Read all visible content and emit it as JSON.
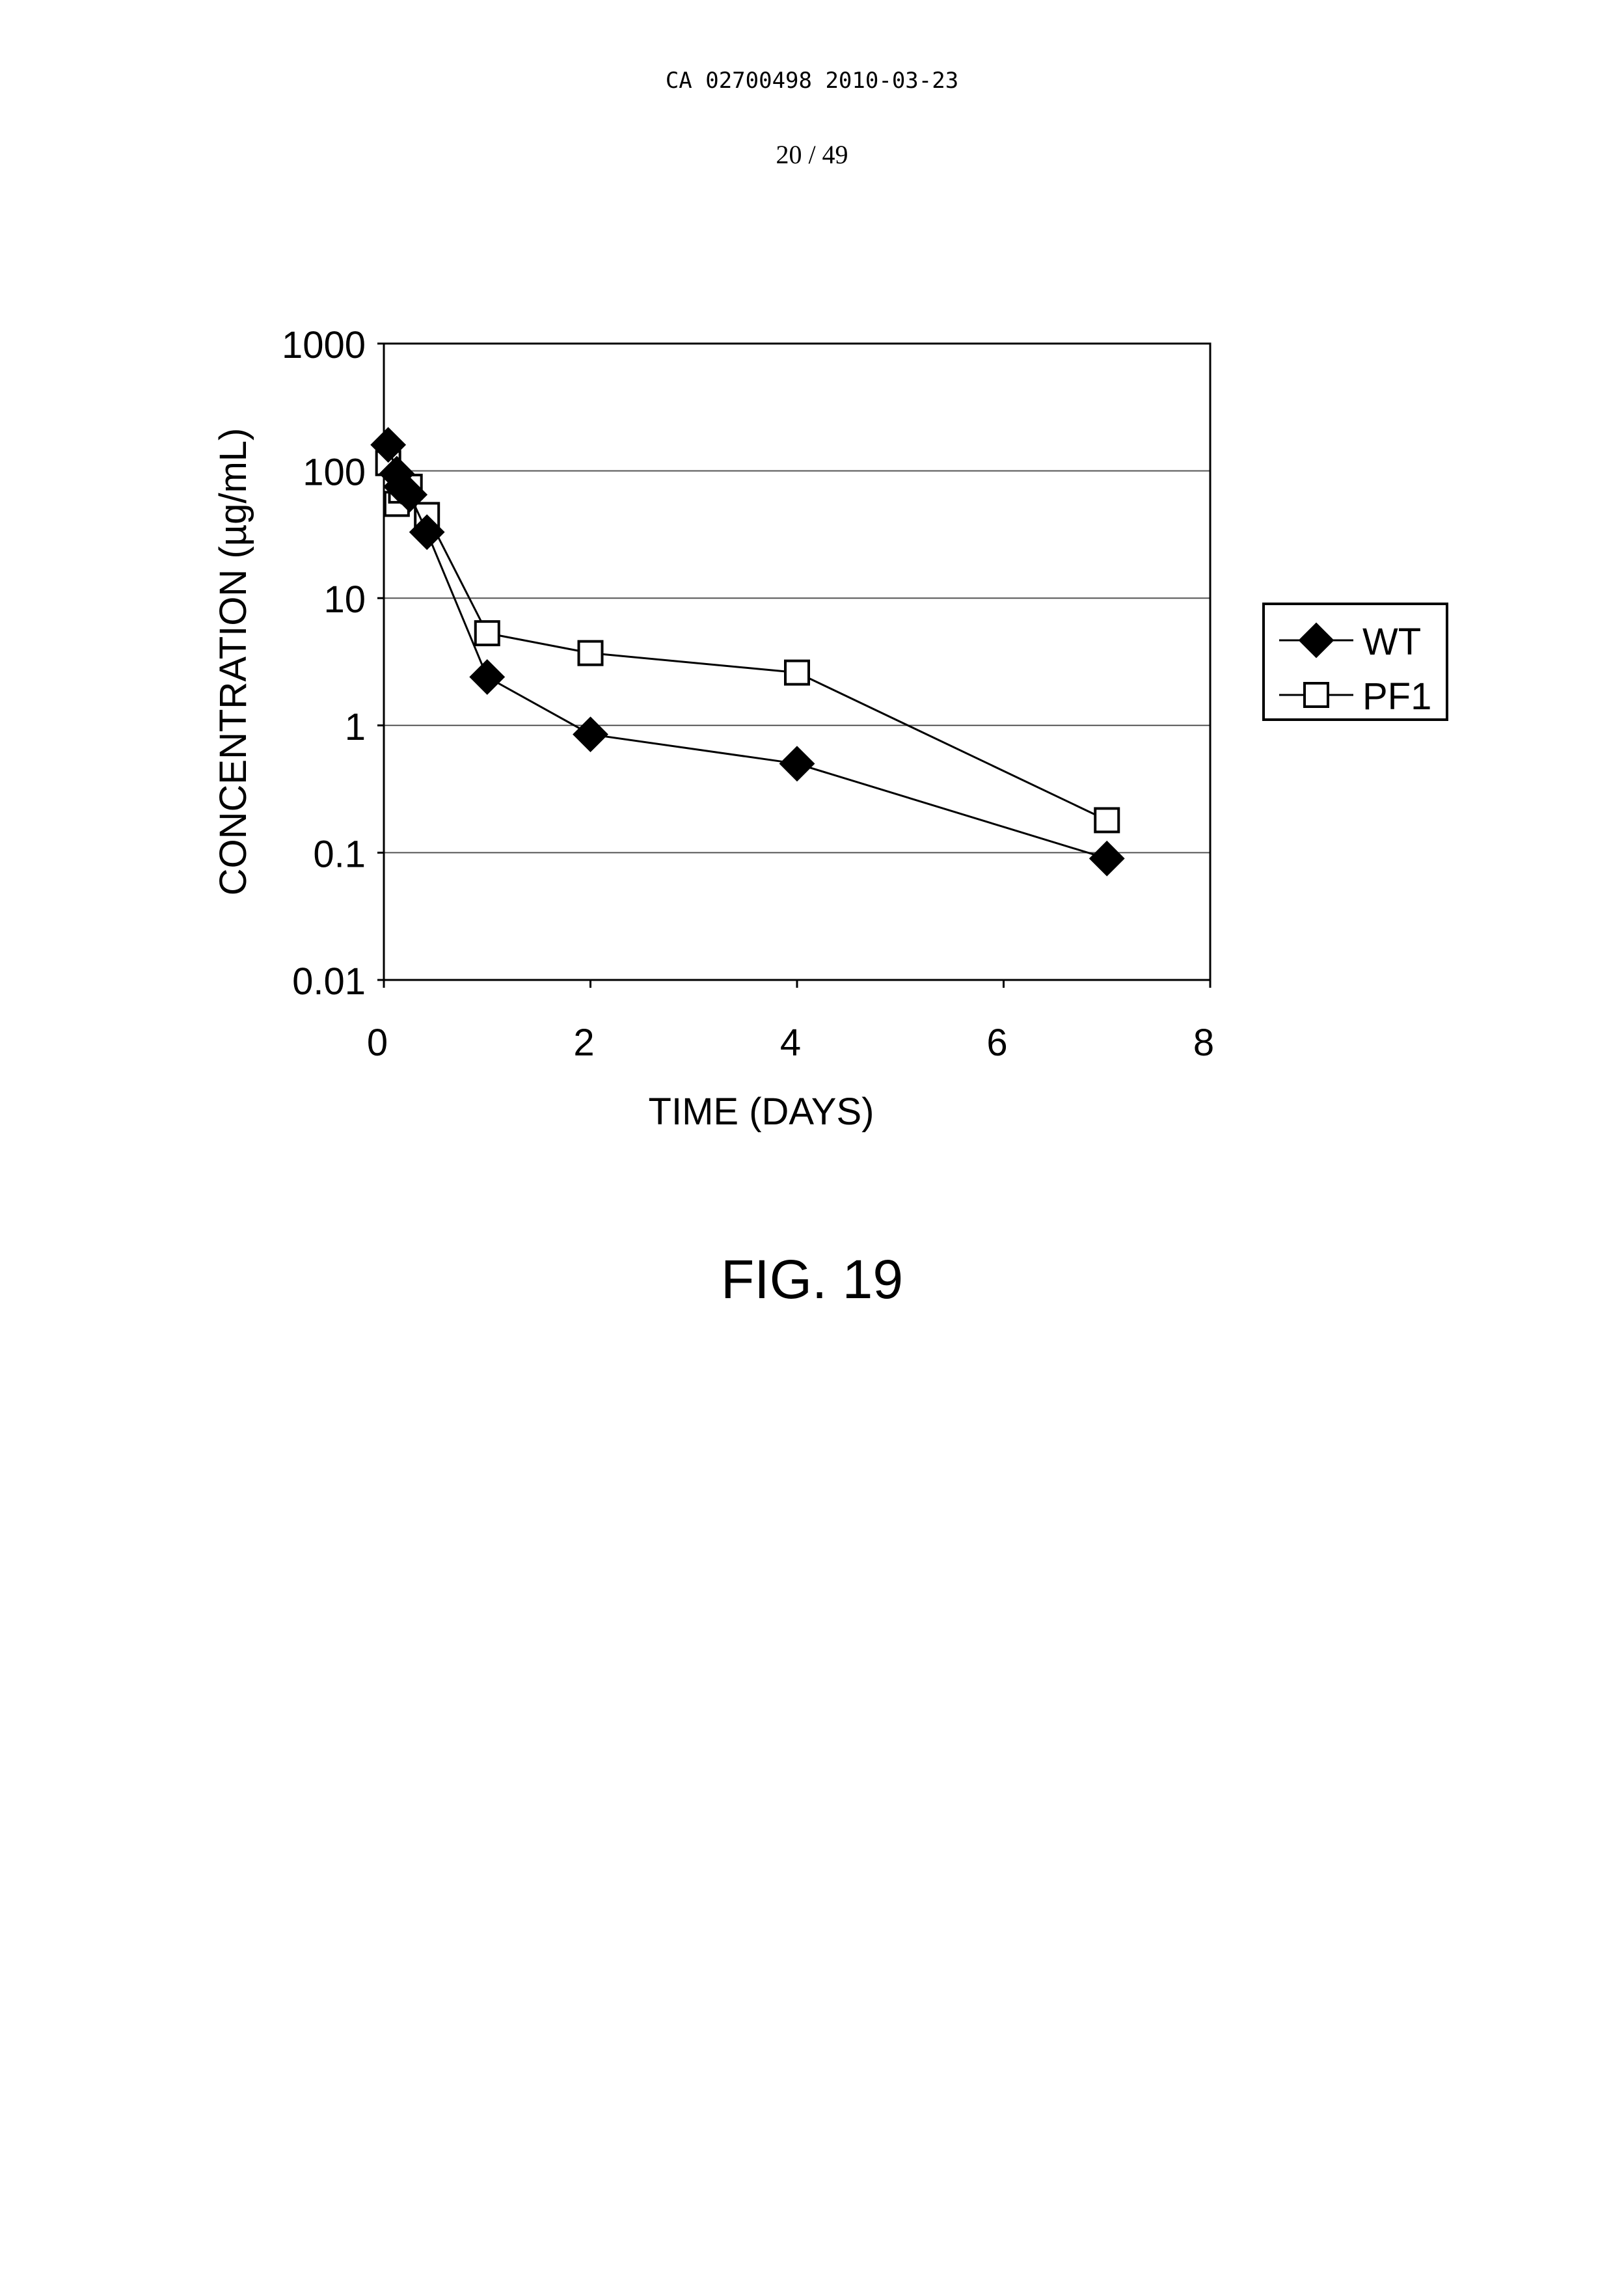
{
  "document": {
    "header": "CA 02700498 2010-03-23",
    "page_number": "20 / 49",
    "figure_caption": "FIG. 19"
  },
  "chart_data": {
    "type": "line",
    "title": "",
    "xlabel": "TIME (DAYS)",
    "ylabel": "CONCENTRATION (µg/mL)",
    "xlim": [
      0,
      8
    ],
    "ylim": [
      0.01,
      1000
    ],
    "yscale": "log",
    "x_ticks": [
      "0",
      "2",
      "4",
      "6",
      "8"
    ],
    "y_ticks": [
      "1000",
      "100",
      "10",
      "1",
      "0.1",
      "0.01"
    ],
    "grid": "horizontal",
    "legend_position": "right",
    "series": [
      {
        "name": "WT",
        "marker": "filled-diamond",
        "x": [
          0.042,
          0.125,
          0.167,
          0.25,
          0.417,
          1,
          2,
          4,
          7
        ],
        "y": [
          160,
          95,
          75,
          65,
          33,
          2.4,
          0.85,
          0.5,
          0.09
        ]
      },
      {
        "name": "PF1",
        "marker": "open-square",
        "x": [
          0.042,
          0.125,
          0.167,
          0.25,
          0.417,
          1,
          2,
          4,
          7
        ],
        "y": [
          115,
          55,
          70,
          75,
          45,
          5.3,
          3.7,
          2.6,
          0.18
        ]
      }
    ]
  }
}
